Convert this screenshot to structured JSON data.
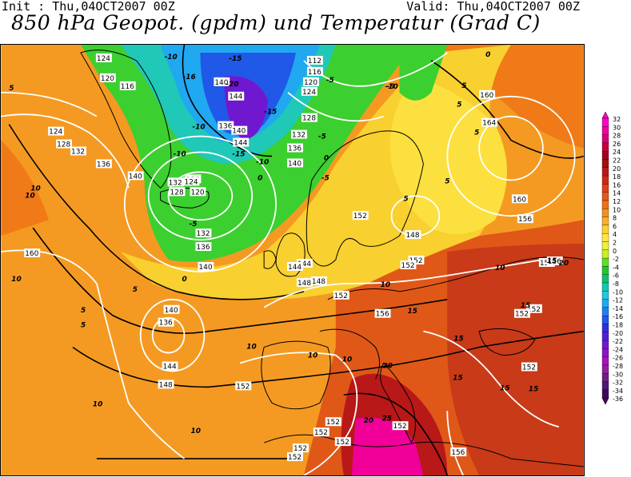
{
  "header": {
    "init": "Init : Thu,04OCT2007 00Z",
    "valid": "Valid: Thu,04OCT2007 00Z",
    "title": "850 hPa Geopot. (gpdm) und Temperatur (Grad C)"
  },
  "legend": {
    "values": [
      "32",
      "30",
      "28",
      "26",
      "24",
      "22",
      "20",
      "18",
      "16",
      "14",
      "12",
      "10",
      "8",
      "6",
      "4",
      "2",
      "0",
      "-2",
      "-4",
      "-6",
      "-8",
      "-10",
      "-12",
      "-14",
      "-16",
      "-18",
      "-20",
      "-22",
      "-24",
      "-26",
      "-28",
      "-30",
      "-32",
      "-34",
      "-36"
    ],
    "colors": [
      "#ff00c8",
      "#f000a0",
      "#d80070",
      "#c00040",
      "#a00020",
      "#a01010",
      "#b81818",
      "#d02818",
      "#e04018",
      "#e85818",
      "#f07018",
      "#f49020",
      "#f8b028",
      "#fcd030",
      "#ffe840",
      "#f0f040",
      "#c8f020",
      "#60e020",
      "#20c830",
      "#10c070",
      "#10c8b0",
      "#20c8e0",
      "#20a8f0",
      "#2080f0",
      "#2058e8",
      "#3030e0",
      "#5020d8",
      "#7018d0",
      "#9010c8",
      "#a810c0",
      "#9020a0",
      "#702080",
      "#501870",
      "#400860"
    ]
  },
  "geopotential_labels": [
    {
      "t": "124"
    },
    {
      "t": "120"
    },
    {
      "t": "116"
    },
    {
      "t": "124"
    },
    {
      "t": "128"
    },
    {
      "t": "132"
    },
    {
      "t": "136"
    },
    {
      "t": "140"
    },
    {
      "t": "136"
    },
    {
      "t": "132"
    },
    {
      "t": "128"
    },
    {
      "t": "124"
    },
    {
      "t": "120"
    },
    {
      "t": "132"
    },
    {
      "t": "136"
    },
    {
      "t": "140"
    },
    {
      "t": "136"
    },
    {
      "t": "140"
    },
    {
      "t": "144"
    },
    {
      "t": "112"
    },
    {
      "t": "116"
    },
    {
      "t": "120"
    },
    {
      "t": "124"
    },
    {
      "t": "128"
    },
    {
      "t": "132"
    },
    {
      "t": "136"
    },
    {
      "t": "140"
    },
    {
      "t": "144"
    },
    {
      "t": "148"
    },
    {
      "t": "152"
    },
    {
      "t": "148"
    },
    {
      "t": "152"
    },
    {
      "t": "144"
    },
    {
      "t": "148"
    },
    {
      "t": "152"
    },
    {
      "t": "156"
    },
    {
      "t": "160"
    },
    {
      "t": "164"
    },
    {
      "t": "160"
    },
    {
      "t": "156"
    },
    {
      "t": "156"
    },
    {
      "t": "152"
    },
    {
      "t": "152"
    },
    {
      "t": "156"
    },
    {
      "t": "160"
    },
    {
      "t": "140"
    },
    {
      "t": "136"
    },
    {
      "t": "144"
    },
    {
      "t": "148"
    },
    {
      "t": "152"
    },
    {
      "t": "152"
    },
    {
      "t": "152"
    },
    {
      "t": "152"
    },
    {
      "t": "152"
    },
    {
      "t": "152"
    },
    {
      "t": "156"
    },
    {
      "t": "152"
    },
    {
      "t": "152"
    },
    {
      "t": "152"
    },
    {
      "t": "140"
    },
    {
      "t": "144"
    }
  ],
  "temperature_labels": [
    {
      "t": "-10"
    },
    {
      "t": "-15"
    },
    {
      "t": "-16"
    },
    {
      "t": "-20"
    },
    {
      "t": "-15"
    },
    {
      "t": "-10"
    },
    {
      "t": "-15"
    },
    {
      "t": "-5"
    },
    {
      "t": "-10"
    },
    {
      "t": "-10"
    },
    {
      "t": "-5"
    },
    {
      "t": "-5"
    },
    {
      "t": "0"
    },
    {
      "t": "0"
    },
    {
      "t": "-5"
    },
    {
      "t": "-10"
    },
    {
      "t": "-5"
    },
    {
      "t": "0"
    },
    {
      "t": "5"
    },
    {
      "t": "5"
    },
    {
      "t": "5"
    },
    {
      "t": "5"
    },
    {
      "t": "10"
    },
    {
      "t": "10"
    },
    {
      "t": "10"
    },
    {
      "t": "10"
    },
    {
      "t": "10"
    },
    {
      "t": "10"
    },
    {
      "t": "15"
    },
    {
      "t": "15"
    },
    {
      "t": "15"
    },
    {
      "t": "20"
    },
    {
      "t": "20"
    },
    {
      "t": "25"
    },
    {
      "t": "5"
    },
    {
      "t": "5"
    },
    {
      "t": "15"
    },
    {
      "t": "15"
    },
    {
      "t": "20"
    },
    {
      "t": "15"
    },
    {
      "t": "15"
    },
    {
      "t": "10"
    },
    {
      "t": "10"
    },
    {
      "t": "0"
    },
    {
      "t": "5"
    },
    {
      "t": "5"
    },
    {
      "t": "5"
    },
    {
      "t": "10"
    },
    {
      "t": "10"
    }
  ]
}
